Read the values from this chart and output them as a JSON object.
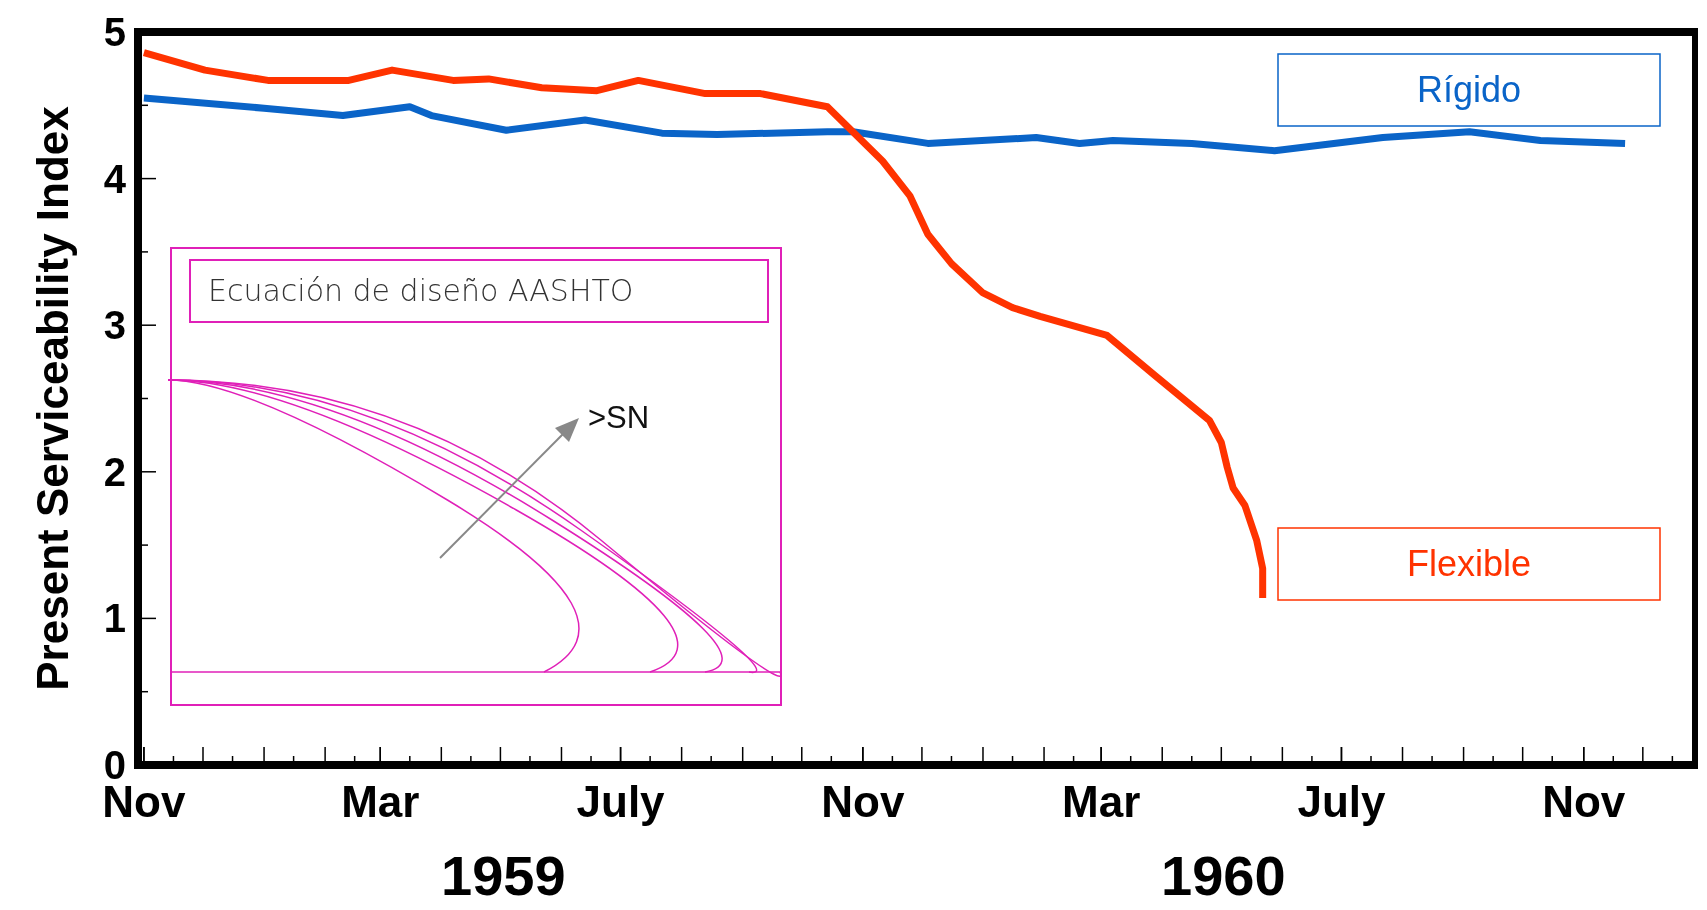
{
  "chart_data": {
    "type": "line",
    "ylabel": "Present Serviceability Index",
    "xlim": [
      "1958-10-29",
      "1960-12-28"
    ],
    "ylim": [
      0,
      5
    ],
    "yticks": [
      0,
      1,
      2,
      3,
      4,
      5
    ],
    "xticks": [
      {
        "value": "1958-11-01",
        "label": "Nov"
      },
      {
        "value": "1959-03-01",
        "label": "Mar"
      },
      {
        "value": "1959-07-01",
        "label": "July"
      },
      {
        "value": "1959-11-01",
        "label": "Nov"
      },
      {
        "value": "1960-03-01",
        "label": "Mar"
      },
      {
        "value": "1960-07-01",
        "label": "July"
      },
      {
        "value": "1960-11-01",
        "label": "Nov"
      }
    ],
    "grid": false,
    "legend": "right",
    "marker": "none",
    "line_style": "solid",
    "annotations": [
      "Ecuación de diseño AASHTO",
      ">SN",
      "1959",
      "1960"
    ],
    "series": [
      {
        "name": "Rígido",
        "color": "#0a64c8",
        "x": [
          "1958-11-01",
          "1959-01-01",
          "1959-02-10",
          "1959-03-16",
          "1959-03-27",
          "1959-05-04",
          "1959-06-13",
          "1959-07-22",
          "1959-08-19",
          "1959-10-14",
          "1959-10-27",
          "1959-12-04",
          "1960-01-28",
          "1960-02-19",
          "1960-03-07",
          "1960-04-16",
          "1960-05-28",
          "1960-07-22",
          "1960-09-04",
          "1960-10-10",
          "1960-11-22"
        ],
        "values": [
          4.55,
          4.48,
          4.43,
          4.49,
          4.43,
          4.33,
          4.4,
          4.31,
          4.3,
          4.32,
          4.32,
          4.24,
          4.28,
          4.24,
          4.26,
          4.24,
          4.19,
          4.28,
          4.32,
          4.26,
          4.24
        ]
      },
      {
        "name": "Flexible",
        "color": "#ff3300",
        "x": [
          "1958-11-01",
          "1958-12-02",
          "1959-01-03",
          "1959-02-13",
          "1959-03-07",
          "1959-04-07",
          "1959-04-25",
          "1959-05-22",
          "1959-06-19",
          "1959-07-10",
          "1959-08-13",
          "1959-09-10",
          "1959-10-14",
          "1959-11-11",
          "1959-11-25",
          "1959-12-04",
          "1959-12-16",
          "1960-01-01",
          "1960-01-16",
          "1960-01-30",
          "1960-03-04",
          "1960-03-28",
          "1960-04-25",
          "1960-05-01",
          "1960-05-04",
          "1960-05-07",
          "1960-05-13",
          "1960-05-19",
          "1960-05-22",
          "1960-05-22"
        ],
        "values": [
          4.86,
          4.74,
          4.67,
          4.67,
          4.74,
          4.67,
          4.68,
          4.62,
          4.6,
          4.67,
          4.58,
          4.58,
          4.49,
          4.12,
          3.88,
          3.62,
          3.42,
          3.22,
          3.12,
          3.06,
          2.93,
          2.66,
          2.35,
          2.2,
          2.03,
          1.89,
          1.77,
          1.53,
          1.34,
          1.14
        ]
      }
    ]
  }
}
